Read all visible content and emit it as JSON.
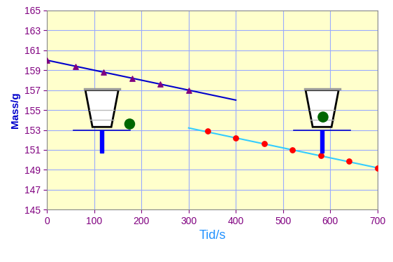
{
  "chart_data": {
    "type": "scatter",
    "x_label": "Tid/s",
    "y_label": "Mass/g",
    "xlim": [
      0,
      700
    ],
    "xticks": [
      0,
      100,
      200,
      300,
      400,
      500,
      600,
      700
    ],
    "ylim": [
      145,
      165
    ],
    "yticks": [
      145,
      147,
      149,
      151,
      153,
      155,
      157,
      159,
      161,
      163,
      165
    ],
    "grid": true,
    "series": [
      {
        "type": "scatter",
        "color": "#800080",
        "marker": "triangle",
        "x": [
          0,
          60,
          120,
          180,
          240,
          300
        ],
        "values": [
          160.0,
          159.4,
          158.8,
          158.2,
          157.6,
          157.0
        ]
      },
      {
        "type": "line",
        "color": "#0000CC",
        "line_style": "solid",
        "x": [
          0,
          400
        ],
        "values": [
          160.0,
          156.0
        ]
      },
      {
        "type": "scatter",
        "color": "#FF0000",
        "marker": "circle",
        "x": [
          340,
          400,
          460,
          520,
          580,
          640,
          700
        ],
        "values": [
          152.9,
          152.2,
          151.6,
          151.0,
          150.4,
          149.9,
          149.2
        ]
      },
      {
        "type": "line",
        "color": "#33CCFF",
        "line_style": "solid",
        "x": [
          300,
          700
        ],
        "values": [
          153.2,
          149.2
        ]
      }
    ]
  }
}
